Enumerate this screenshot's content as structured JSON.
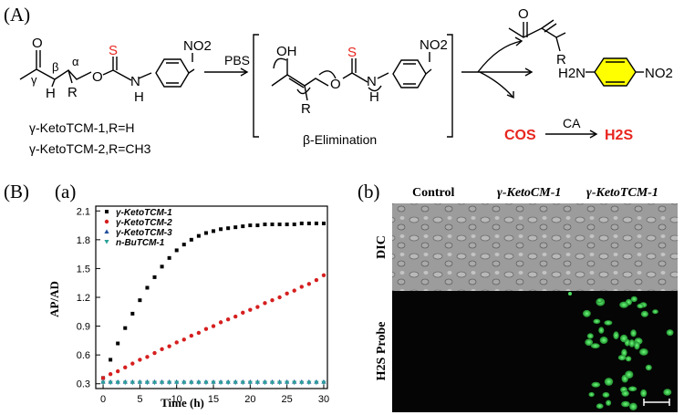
{
  "panels": {
    "A": "(A)",
    "B": "(B)",
    "a": "(a)",
    "b": "(b)"
  },
  "scheme": {
    "reagent": "PBS",
    "step_label": "β-Elimination",
    "compound_labels": [
      "γ-KetoTCM-1,R=H",
      "γ-KetoTCM-2,R=CH3"
    ],
    "atoms": {
      "O": "O",
      "S": "S",
      "N": "N",
      "H": "H",
      "R": "R",
      "OH": "OH",
      "NO2": "NO2",
      "H2N": "H2N",
      "gamma": "γ",
      "beta": "β",
      "alpha": "α"
    },
    "byproduct": "COS",
    "enzyme": "CA",
    "product": "H2S",
    "colors": {
      "sulfur": "#e8251f",
      "cos": "#e8251f",
      "h2s": "#e8251f",
      "aniline_ring": "#ffff00"
    }
  },
  "chart_data": {
    "type": "scatter",
    "xlabel": "Time (h)",
    "ylabel": "AP/AD",
    "xlim": [
      -1,
      30.5
    ],
    "ylim": [
      0.25,
      2.15
    ],
    "xticks": [
      0,
      5,
      10,
      15,
      20,
      25,
      30
    ],
    "yticks": [
      0.3,
      0.6,
      0.9,
      1.2,
      1.5,
      1.8,
      2.1
    ],
    "legend_position": "top-left",
    "series": [
      {
        "name": "γ-KetoTCM-1",
        "marker": "square",
        "color": "#000000",
        "x": [
          0,
          1,
          2,
          3,
          4,
          5,
          6,
          7,
          8,
          9,
          10,
          11,
          12,
          13,
          14,
          15,
          16,
          17,
          18,
          19,
          20,
          21,
          22,
          23,
          24,
          25,
          26,
          27,
          28,
          29,
          30
        ],
        "y": [
          0.36,
          0.55,
          0.72,
          0.88,
          1.03,
          1.17,
          1.3,
          1.41,
          1.52,
          1.61,
          1.69,
          1.75,
          1.8,
          1.84,
          1.87,
          1.89,
          1.91,
          1.92,
          1.93,
          1.94,
          1.95,
          1.95,
          1.96,
          1.96,
          1.96,
          1.96,
          1.96,
          1.97,
          1.97,
          1.97,
          1.97
        ]
      },
      {
        "name": "γ-KetoTCM-2",
        "marker": "circle",
        "color": "#d61f1f",
        "x": [
          0,
          1,
          2,
          3,
          4,
          5,
          6,
          7,
          8,
          9,
          10,
          11,
          12,
          13,
          14,
          15,
          16,
          17,
          18,
          19,
          20,
          21,
          22,
          23,
          24,
          25,
          26,
          27,
          28,
          29,
          30
        ],
        "y": [
          0.36,
          0.4,
          0.43,
          0.47,
          0.51,
          0.55,
          0.58,
          0.62,
          0.66,
          0.69,
          0.73,
          0.76,
          0.8,
          0.83,
          0.87,
          0.9,
          0.94,
          0.97,
          1.0,
          1.04,
          1.07,
          1.1,
          1.14,
          1.17,
          1.2,
          1.24,
          1.27,
          1.31,
          1.34,
          1.38,
          1.43
        ]
      },
      {
        "name": "γ-KetoTCM-3",
        "marker": "triangle",
        "color": "#1f4e9c",
        "x": [
          0,
          1,
          2,
          3,
          4,
          5,
          6,
          7,
          8,
          9,
          10,
          11,
          12,
          13,
          14,
          15,
          16,
          17,
          18,
          19,
          20,
          21,
          22,
          23,
          24,
          25,
          26,
          27,
          28,
          29,
          30
        ],
        "y": [
          0.32,
          0.32,
          0.32,
          0.32,
          0.32,
          0.32,
          0.32,
          0.32,
          0.32,
          0.32,
          0.32,
          0.32,
          0.32,
          0.32,
          0.32,
          0.32,
          0.32,
          0.32,
          0.32,
          0.32,
          0.32,
          0.32,
          0.32,
          0.32,
          0.32,
          0.32,
          0.32,
          0.32,
          0.32,
          0.32,
          0.32
        ]
      },
      {
        "name": "n-BuTCM-1",
        "marker": "triangle-down",
        "color": "#2aa198",
        "x": [
          0,
          1,
          2,
          3,
          4,
          5,
          6,
          7,
          8,
          9,
          10,
          11,
          12,
          13,
          14,
          15,
          16,
          17,
          18,
          19,
          20,
          21,
          22,
          23,
          24,
          25,
          26,
          27,
          28,
          29,
          30
        ],
        "y": [
          0.31,
          0.31,
          0.31,
          0.31,
          0.31,
          0.31,
          0.31,
          0.31,
          0.31,
          0.31,
          0.31,
          0.31,
          0.31,
          0.31,
          0.31,
          0.31,
          0.31,
          0.31,
          0.31,
          0.31,
          0.31,
          0.31,
          0.31,
          0.31,
          0.31,
          0.31,
          0.31,
          0.31,
          0.31,
          0.31,
          0.31
        ]
      }
    ]
  },
  "microscopy": {
    "columns": [
      "Control",
      "γ-KetoCM-1",
      "γ-KetoTCM-1"
    ],
    "rows": [
      "DIC",
      "H2S Probe"
    ]
  }
}
